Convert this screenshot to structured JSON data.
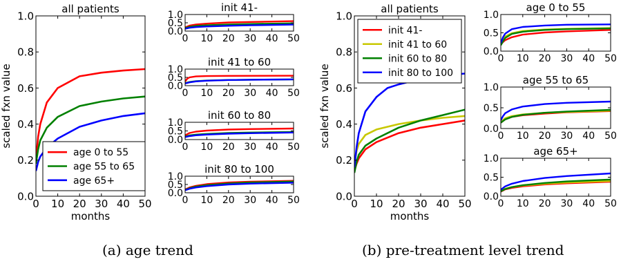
{
  "captions": {
    "a": "(a) age trend",
    "b": "(b) pre-treatment level trend"
  },
  "chart_data": [
    {
      "id": "a-main",
      "type": "line",
      "title": "all patients",
      "xlabel": "months",
      "ylabel": "scaled fxn value",
      "xlim": [
        0,
        50
      ],
      "ylim": [
        0,
        1
      ],
      "xticks": [
        "0",
        "10",
        "20",
        "30",
        "40",
        "50"
      ],
      "yticks": [
        "0.0",
        "0.2",
        "0.4",
        "0.6",
        "0.8",
        "1.0"
      ],
      "legend": "lower-right",
      "series": [
        {
          "name": "age 0 to 55",
          "color": "#ff0000",
          "x": [
            0,
            1,
            2,
            5,
            10,
            20,
            30,
            40,
            50
          ],
          "values": [
            0.2,
            0.33,
            0.4,
            0.52,
            0.6,
            0.665,
            0.685,
            0.697,
            0.705
          ]
        },
        {
          "name": "age 55 to 65",
          "color": "#008000",
          "x": [
            0,
            1,
            2,
            5,
            10,
            20,
            30,
            40,
            50
          ],
          "values": [
            0.18,
            0.26,
            0.31,
            0.38,
            0.44,
            0.5,
            0.525,
            0.542,
            0.553
          ]
        },
        {
          "name": "age 65+",
          "color": "#0000ff",
          "x": [
            0,
            1,
            2,
            5,
            10,
            20,
            30,
            40,
            50
          ],
          "values": [
            0.14,
            0.19,
            0.22,
            0.27,
            0.32,
            0.385,
            0.42,
            0.445,
            0.46
          ]
        }
      ]
    },
    {
      "id": "a-s1",
      "type": "line",
      "title": "init 41-",
      "xlim": [
        0,
        50
      ],
      "ylim": [
        0,
        1
      ],
      "xticks": [
        "0",
        "10",
        "20",
        "30",
        "40",
        "50"
      ],
      "yticks": [
        "0.0",
        "0.5",
        "1.0"
      ],
      "series": [
        {
          "color": "#ff0000",
          "x": [
            0,
            2,
            5,
            10,
            20,
            30,
            50
          ],
          "values": [
            0.22,
            0.33,
            0.4,
            0.45,
            0.52,
            0.55,
            0.6
          ]
        },
        {
          "color": "#008000",
          "x": [
            0,
            2,
            5,
            10,
            20,
            30,
            50
          ],
          "values": [
            0.18,
            0.26,
            0.31,
            0.35,
            0.4,
            0.43,
            0.47
          ]
        },
        {
          "color": "#0000ff",
          "x": [
            0,
            2,
            5,
            10,
            20,
            30,
            50
          ],
          "values": [
            0.14,
            0.2,
            0.24,
            0.28,
            0.32,
            0.35,
            0.39
          ]
        }
      ]
    },
    {
      "id": "a-s2",
      "type": "line",
      "title": "init 41 to 60",
      "xlim": [
        0,
        50
      ],
      "ylim": [
        0,
        1
      ],
      "xticks": [
        "0",
        "10",
        "20",
        "30",
        "40",
        "50"
      ],
      "yticks": [
        "0.0",
        "0.5",
        "1.0"
      ],
      "series": [
        {
          "color": "#ff0000",
          "x": [
            0,
            1,
            2,
            5,
            10,
            20,
            50
          ],
          "values": [
            0.25,
            0.42,
            0.5,
            0.56,
            0.58,
            0.59,
            0.6
          ]
        },
        {
          "color": "#008000",
          "x": [
            0,
            2,
            5,
            10,
            20,
            30,
            50
          ],
          "values": [
            0.15,
            0.22,
            0.27,
            0.31,
            0.34,
            0.36,
            0.38
          ]
        },
        {
          "color": "#0000ff",
          "x": [
            0,
            2,
            5,
            10,
            20,
            30,
            50
          ],
          "values": [
            0.13,
            0.2,
            0.26,
            0.3,
            0.34,
            0.36,
            0.38
          ]
        }
      ]
    },
    {
      "id": "a-s3",
      "type": "line",
      "title": "init 60 to 80",
      "xlim": [
        0,
        50
      ],
      "ylim": [
        0,
        1
      ],
      "xticks": [
        "0",
        "10",
        "20",
        "30",
        "40",
        "50"
      ],
      "yticks": [
        "0.0",
        "0.5",
        "1.0"
      ],
      "series": [
        {
          "color": "#ff0000",
          "x": [
            0,
            2,
            5,
            10,
            20,
            30,
            50
          ],
          "values": [
            0.25,
            0.38,
            0.46,
            0.52,
            0.58,
            0.61,
            0.64
          ]
        },
        {
          "color": "#008000",
          "x": [
            0,
            2,
            5,
            10,
            20,
            30,
            50
          ],
          "values": [
            0.17,
            0.24,
            0.29,
            0.33,
            0.38,
            0.41,
            0.44
          ]
        },
        {
          "color": "#0000ff",
          "x": [
            0,
            2,
            5,
            10,
            20,
            30,
            50
          ],
          "values": [
            0.14,
            0.2,
            0.25,
            0.29,
            0.34,
            0.37,
            0.41
          ]
        }
      ]
    },
    {
      "id": "a-s4",
      "type": "line",
      "title": "init 80 to 100",
      "xlim": [
        0,
        50
      ],
      "ylim": [
        0,
        1
      ],
      "xticks": [
        "0",
        "10",
        "20",
        "30",
        "40",
        "50"
      ],
      "yticks": [
        "0.0",
        "0.5",
        "1.0"
      ],
      "series": [
        {
          "color": "#ff0000",
          "x": [
            0,
            2,
            5,
            10,
            20,
            30,
            50
          ],
          "values": [
            0.2,
            0.32,
            0.42,
            0.52,
            0.62,
            0.67,
            0.72
          ]
        },
        {
          "color": "#008000",
          "x": [
            0,
            2,
            5,
            10,
            20,
            30,
            50
          ],
          "values": [
            0.17,
            0.28,
            0.37,
            0.46,
            0.56,
            0.62,
            0.68
          ]
        },
        {
          "color": "#0000ff",
          "x": [
            0,
            2,
            5,
            10,
            20,
            30,
            50
          ],
          "values": [
            0.15,
            0.24,
            0.32,
            0.4,
            0.5,
            0.55,
            0.61
          ]
        }
      ]
    },
    {
      "id": "b-main",
      "type": "line",
      "title": "all patients",
      "xlabel": "months",
      "ylabel": "scaled fxn value",
      "xlim": [
        0,
        50
      ],
      "ylim": [
        0,
        1
      ],
      "xticks": [
        "0",
        "10",
        "20",
        "30",
        "40",
        "50"
      ],
      "yticks": [
        "0.0",
        "0.2",
        "0.4",
        "0.6",
        "0.8",
        "1.0"
      ],
      "legend": "upper-left",
      "series": [
        {
          "name": "init 41-",
          "color": "#ff0000",
          "x": [
            0,
            1,
            2,
            5,
            10,
            20,
            30,
            40,
            50
          ],
          "values": [
            0.14,
            0.18,
            0.21,
            0.26,
            0.3,
            0.35,
            0.38,
            0.4,
            0.42
          ]
        },
        {
          "name": "init 41 to 60",
          "color": "#c8c800",
          "x": [
            0,
            1,
            2,
            5,
            10,
            20,
            30,
            40,
            50
          ],
          "values": [
            0.18,
            0.25,
            0.29,
            0.34,
            0.37,
            0.4,
            0.42,
            0.435,
            0.445
          ]
        },
        {
          "name": "init 60 to 80",
          "color": "#008000",
          "x": [
            0,
            1,
            2,
            5,
            10,
            20,
            30,
            40,
            50
          ],
          "values": [
            0.13,
            0.19,
            0.23,
            0.28,
            0.32,
            0.38,
            0.42,
            0.45,
            0.48
          ]
        },
        {
          "name": "init 80 to 100",
          "color": "#0000ff",
          "x": [
            0,
            1,
            2,
            5,
            10,
            15,
            20,
            30,
            40,
            50
          ],
          "values": [
            0.16,
            0.27,
            0.35,
            0.47,
            0.55,
            0.6,
            0.62,
            0.65,
            0.67,
            0.68
          ]
        }
      ]
    },
    {
      "id": "b-s1",
      "type": "line",
      "title": "age 0 to 55",
      "xlim": [
        0,
        50
      ],
      "ylim": [
        0,
        1
      ],
      "xticks": [
        "0",
        "10",
        "20",
        "30",
        "40",
        "50"
      ],
      "yticks": [
        "0.0",
        "0.5",
        "1.0"
      ],
      "series": [
        {
          "color": "#ff0000",
          "x": [
            0,
            1,
            2,
            5,
            10,
            20,
            30,
            50
          ],
          "values": [
            0.18,
            0.25,
            0.3,
            0.38,
            0.45,
            0.51,
            0.54,
            0.58
          ]
        },
        {
          "color": "#c8c800",
          "x": [
            0,
            1,
            2,
            5,
            10,
            20,
            30,
            50
          ],
          "values": [
            0.2,
            0.32,
            0.4,
            0.49,
            0.55,
            0.59,
            0.61,
            0.63
          ]
        },
        {
          "color": "#008000",
          "x": [
            0,
            1,
            2,
            5,
            10,
            20,
            30,
            50
          ],
          "values": [
            0.16,
            0.27,
            0.36,
            0.47,
            0.53,
            0.58,
            0.6,
            0.62
          ]
        },
        {
          "color": "#0000ff",
          "x": [
            0,
            1,
            2,
            5,
            10,
            20,
            30,
            50
          ],
          "values": [
            0.22,
            0.38,
            0.48,
            0.6,
            0.66,
            0.7,
            0.72,
            0.73
          ]
        }
      ]
    },
    {
      "id": "b-s2",
      "type": "line",
      "title": "age 55 to 65",
      "xlim": [
        0,
        50
      ],
      "ylim": [
        0,
        1
      ],
      "xticks": [
        "0",
        "10",
        "20",
        "30",
        "40",
        "50"
      ],
      "yticks": [
        "0.0",
        "0.5",
        "1.0"
      ],
      "series": [
        {
          "color": "#ff0000",
          "x": [
            0,
            2,
            5,
            10,
            20,
            30,
            50
          ],
          "values": [
            0.14,
            0.22,
            0.28,
            0.32,
            0.36,
            0.39,
            0.42
          ]
        },
        {
          "color": "#c8c800",
          "x": [
            0,
            2,
            5,
            10,
            20,
            30,
            50
          ],
          "values": [
            0.16,
            0.25,
            0.3,
            0.34,
            0.38,
            0.4,
            0.43
          ]
        },
        {
          "color": "#008000",
          "x": [
            0,
            2,
            5,
            10,
            20,
            30,
            50
          ],
          "values": [
            0.14,
            0.22,
            0.28,
            0.33,
            0.38,
            0.41,
            0.45
          ]
        },
        {
          "color": "#0000ff",
          "x": [
            0,
            1,
            2,
            5,
            10,
            20,
            30,
            50
          ],
          "values": [
            0.2,
            0.3,
            0.37,
            0.46,
            0.53,
            0.59,
            0.62,
            0.65
          ]
        }
      ]
    },
    {
      "id": "b-s3",
      "type": "line",
      "title": "age 65+",
      "xlim": [
        0,
        50
      ],
      "ylim": [
        0,
        1
      ],
      "xticks": [
        "0",
        "10",
        "20",
        "30",
        "40",
        "50"
      ],
      "yticks": [
        "0.0",
        "0.5",
        "1.0"
      ],
      "series": [
        {
          "color": "#ff0000",
          "x": [
            0,
            2,
            5,
            10,
            20,
            30,
            50
          ],
          "values": [
            0.12,
            0.18,
            0.22,
            0.26,
            0.31,
            0.34,
            0.38
          ]
        },
        {
          "color": "#c8c800",
          "x": [
            0,
            2,
            5,
            10,
            20,
            30,
            50
          ],
          "values": [
            0.14,
            0.2,
            0.24,
            0.28,
            0.33,
            0.36,
            0.4
          ]
        },
        {
          "color": "#008000",
          "x": [
            0,
            2,
            5,
            10,
            20,
            30,
            50
          ],
          "values": [
            0.13,
            0.19,
            0.24,
            0.29,
            0.35,
            0.39,
            0.44
          ]
        },
        {
          "color": "#0000ff",
          "x": [
            0,
            2,
            5,
            10,
            20,
            30,
            50
          ],
          "values": [
            0.17,
            0.26,
            0.33,
            0.4,
            0.48,
            0.53,
            0.6
          ]
        }
      ]
    }
  ]
}
